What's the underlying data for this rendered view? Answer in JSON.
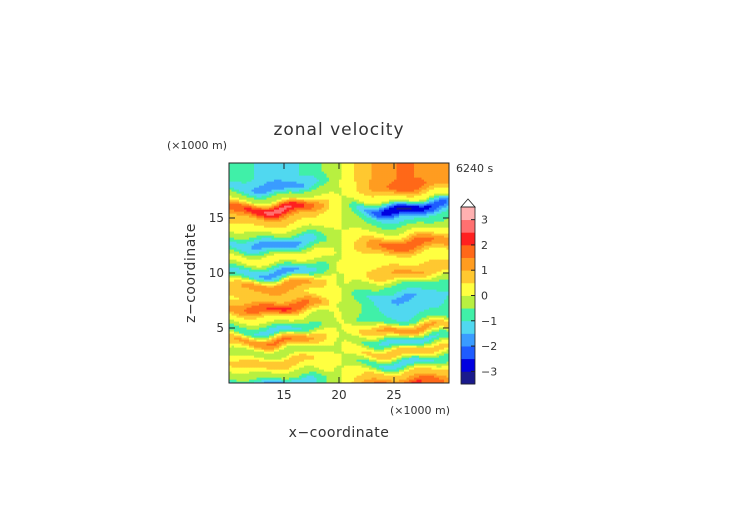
{
  "chart_data": {
    "type": "heatmap",
    "title": "zonal velocity",
    "xlabel": "x−coordinate",
    "ylabel": "z−coordinate",
    "x_unit": "(×1000 m)",
    "z_unit": "(×1000 m)",
    "time_label": "6240 s",
    "xlim": [
      10,
      30
    ],
    "zlim": [
      0,
      20
    ],
    "x_ticks": [
      15,
      20,
      25
    ],
    "z_ticks": [
      5,
      10,
      15
    ],
    "x_tick_labels": [
      "15",
      "20",
      "25"
    ],
    "z_tick_labels": [
      "5",
      "10",
      "15"
    ],
    "colorbar": {
      "levels": [
        -3.5,
        -3.0,
        -2.5,
        -2.0,
        -1.5,
        -1.0,
        -0.5,
        0.0,
        0.5,
        1.0,
        1.5,
        2.0,
        2.5,
        3.0,
        3.5
      ],
      "tick_values": [
        -3,
        -2,
        -1,
        0,
        1,
        2,
        3
      ],
      "tick_labels": [
        "−3",
        "−2",
        "−1",
        "0",
        "1",
        "2",
        "3"
      ],
      "colors": [
        "#1a1a8c",
        "#0000e0",
        "#1e5cff",
        "#3a9cff",
        "#50d8f0",
        "#40f0a8",
        "#b8f040",
        "#ffff40",
        "#ffc830",
        "#ff9c20",
        "#ff6818",
        "#ff2020",
        "#ff7070",
        "#ffb0b0"
      ],
      "extend_max": true
    },
    "fields": [
      {
        "z": 19.0,
        "left": -1.3,
        "right": 1.6
      },
      {
        "z": 18.0,
        "left": -2.0,
        "right": 1.8
      },
      {
        "z": 17.0,
        "left": -0.2,
        "right": 0.3
      },
      {
        "z": 16.0,
        "left": 2.9,
        "right": -3.2
      },
      {
        "z": 15.0,
        "left": 1.0,
        "right": -1.1
      },
      {
        "z": 14.0,
        "left": 0.0,
        "right": 0.0
      },
      {
        "z": 12.8,
        "left": -2.0,
        "right": 2.0
      },
      {
        "z": 11.5,
        "left": 0.3,
        "right": 0.2
      },
      {
        "z": 10.2,
        "left": -1.8,
        "right": 1.2
      },
      {
        "z": 9.0,
        "left": 1.5,
        "right": -0.8
      },
      {
        "z": 8.0,
        "left": 0.8,
        "right": -1.6
      },
      {
        "z": 7.0,
        "left": 2.2,
        "right": -1.5
      },
      {
        "z": 6.0,
        "left": 0.2,
        "right": -1.0
      },
      {
        "z": 5.0,
        "left": -1.3,
        "right": 1.4
      },
      {
        "z": 4.0,
        "left": 1.7,
        "right": -1.4
      },
      {
        "z": 3.0,
        "left": -0.5,
        "right": 1.0
      },
      {
        "z": 2.0,
        "left": 1.0,
        "right": -1.3
      },
      {
        "z": 1.0,
        "left": -0.2,
        "right": 0.8
      },
      {
        "z": 0.0,
        "left": -2.0,
        "right": 2.3
      }
    ]
  }
}
